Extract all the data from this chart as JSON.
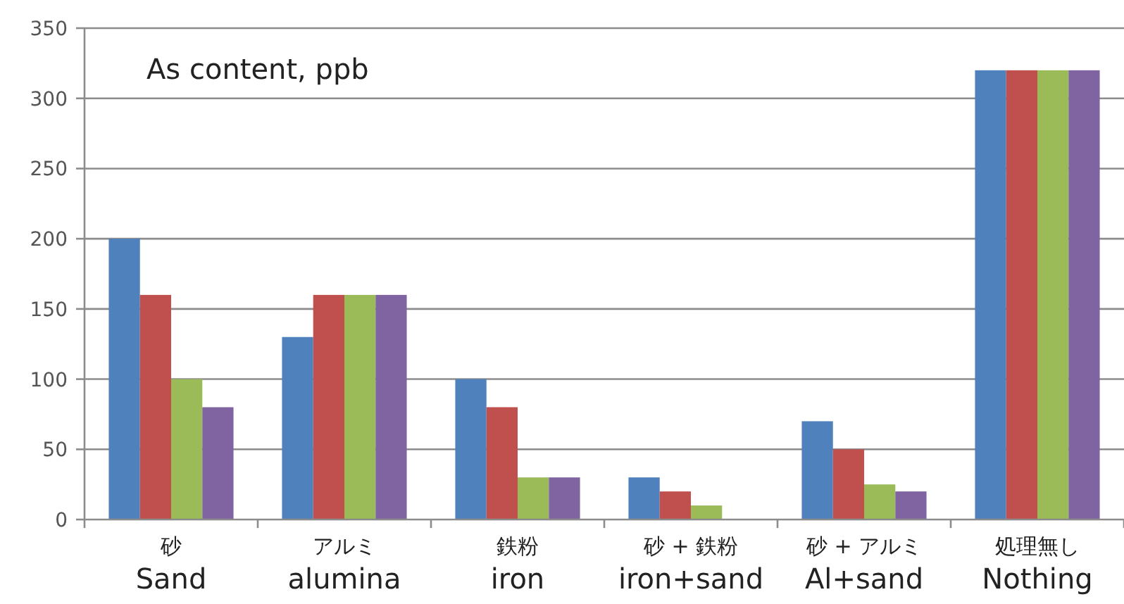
{
  "chart_data": {
    "type": "bar",
    "title": "As content, ppb",
    "categories": [
      "砂\nSand",
      "アルミ\nalumina",
      "鉄粉\niron",
      "砂 + 鉄粉\niron+sand",
      "砂 + アルミ\nAl+sand",
      "処理無し\nNothing"
    ],
    "series": [
      {
        "color": "#4f81bd",
        "values": [
          200,
          130,
          100,
          30,
          70,
          320
        ]
      },
      {
        "color": "#c0504d",
        "values": [
          160,
          160,
          80,
          20,
          50,
          320
        ]
      },
      {
        "color": "#9bbb59",
        "values": [
          100,
          160,
          30,
          10,
          25,
          320
        ]
      },
      {
        "color": "#8064a2",
        "values": [
          80,
          160,
          30,
          null,
          20,
          320
        ]
      }
    ],
    "ylim": [
      0,
      350
    ],
    "yticks": [
      0,
      50,
      100,
      150,
      200,
      250,
      300,
      350
    ],
    "grid": "y"
  }
}
